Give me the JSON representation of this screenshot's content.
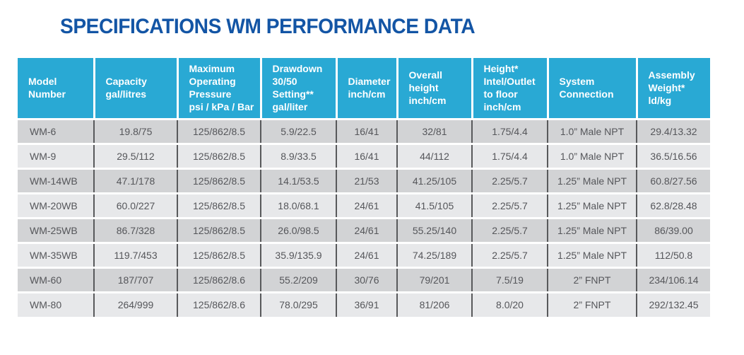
{
  "title": "SPECIFICATIONS WM PERFORMANCE DATA",
  "colors": {
    "title_blue": "#1355A5",
    "header_cyan": "#29A9D4",
    "row_dark_gray": "#D2D3D5",
    "row_light_gray": "#E7E8EA",
    "cell_text_gray": "#55565A",
    "divider_dark": "#58595B"
  },
  "table": {
    "columns": [
      {
        "label": "Model\nNumber",
        "width": 108
      },
      {
        "label": "Capacity\ngal/litres",
        "width": 118
      },
      {
        "label": "Maximum\nOperating\nPressure\npsi / kPa / Bar",
        "width": 118
      },
      {
        "label": "Drawdown\n30/50\nSetting**\ngal/liter",
        "width": 107
      },
      {
        "label": "Diameter\ninch/cm",
        "width": 86
      },
      {
        "label": "Overall\nheight\ninch/cm",
        "width": 106
      },
      {
        "label": "Height*\nIntel/Outlet\nto floor\ninch/cm",
        "width": 107
      },
      {
        "label": "System\nConnection",
        "width": 126
      },
      {
        "label": "Assembly\nWeight*\nld/kg",
        "width": 104
      }
    ],
    "rows": [
      [
        "WM-6",
        "19.8/75",
        "125/862/8.5",
        "5.9/22.5",
        "16/41",
        "32/81",
        "1.75/4.4",
        "1.0” Male NPT",
        "29.4/13.32"
      ],
      [
        "WM-9",
        "29.5/112",
        "125/862/8.5",
        "8.9/33.5",
        "16/41",
        "44/112",
        "1.75/4.4",
        "1.0” Male NPT",
        "36.5/16.56"
      ],
      [
        "WM-14WB",
        "47.1/178",
        "125/862/8.5",
        "14.1/53.5",
        "21/53",
        "41.25/105",
        "2.25/5.7",
        "1.25” Male NPT",
        "60.8/27.56"
      ],
      [
        "WM-20WB",
        "60.0/227",
        "125/862/8.5",
        "18.0/68.1",
        "24/61",
        "41.5/105",
        "2.25/5.7",
        "1.25” Male NPT",
        "62.8/28.48"
      ],
      [
        "WM-25WB",
        "86.7/328",
        "125/862/8.5",
        "26.0/98.5",
        "24/61",
        "55.25/140",
        "2.25/5.7",
        "1.25” Male NPT",
        "86/39.00"
      ],
      [
        "WM-35WB",
        "119.7/453",
        "125/862/8.5",
        "35.9/135.9",
        "24/61",
        "74.25/189",
        "2.25/5.7",
        "1.25” Male NPT",
        "112/50.8"
      ],
      [
        "WM-60",
        "187/707",
        "125/862/8.6",
        "55.2/209",
        "30/76",
        "79/201",
        "7.5/19",
        "2” FNPT",
        "234/106.14"
      ],
      [
        "WM-80",
        "264/999",
        "125/862/8.6",
        "78.0/295",
        "36/91",
        "81/206",
        "8.0/20",
        "2” FNPT",
        "292/132.45"
      ]
    ]
  }
}
